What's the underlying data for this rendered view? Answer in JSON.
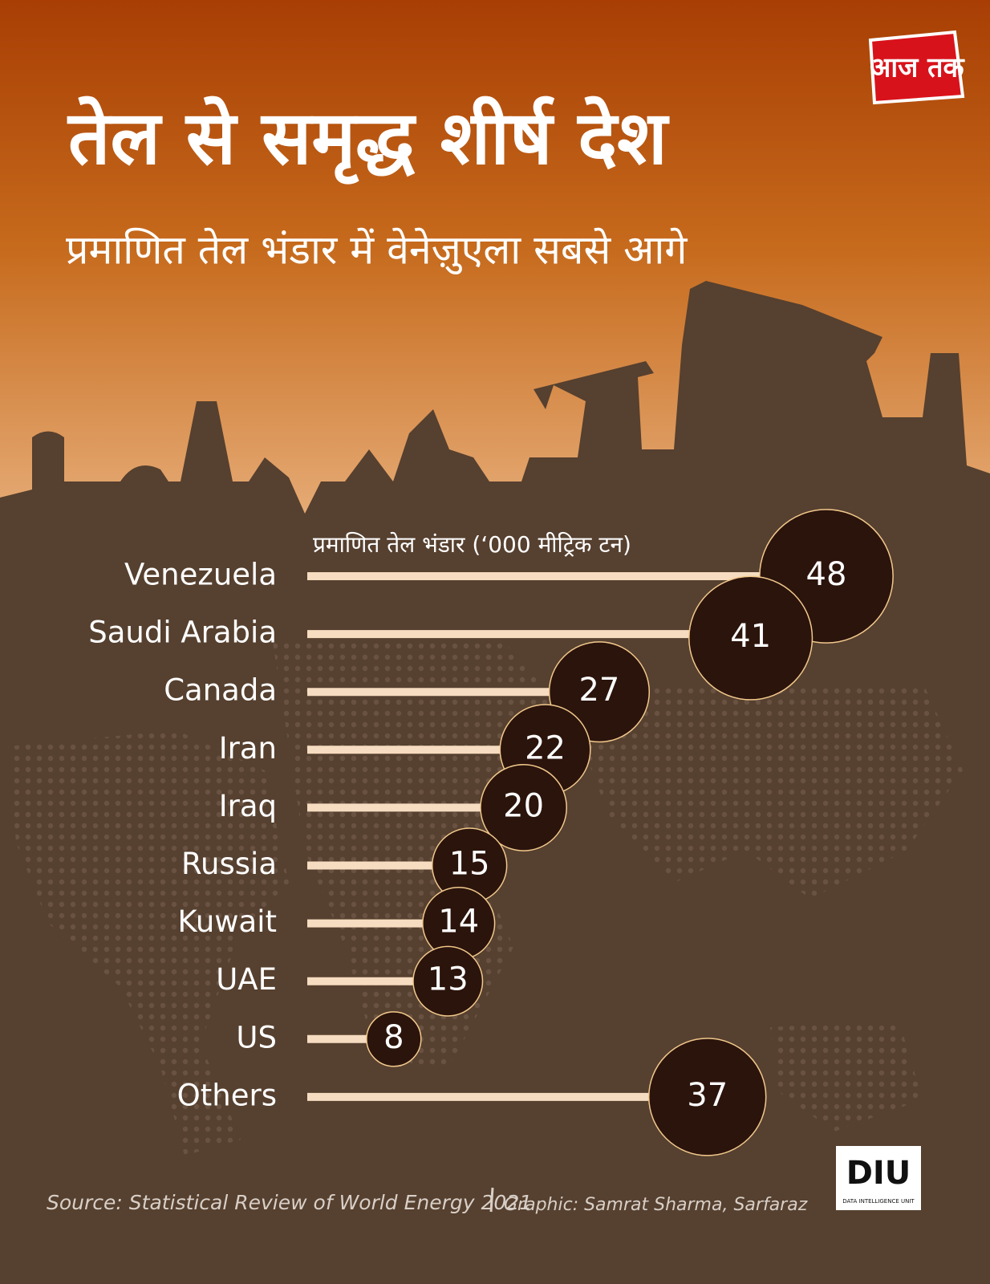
{
  "chart_data": {
    "type": "lollipop",
    "title": "तेल से समृद्ध शीर्ष देश",
    "subtitle": "प्रमाणित तेल भंडार में वेनेज़ुएला सबसे आगे",
    "value_axis_label": "प्रमाणित तेल भंडार (‘000 मीट्रिक टन)",
    "categories": [
      "Venezuela",
      "Saudi Arabia",
      "Canada",
      "Iran",
      "Iraq",
      "Russia",
      "Kuwait",
      "UAE",
      "US",
      "Others"
    ],
    "values": [
      48,
      41,
      27,
      22,
      20,
      15,
      14,
      13,
      8,
      37
    ],
    "line_color": "#f6dcc0",
    "bubble_color": "#2b140c",
    "source": "Source: Statistical Review of World Energy 2021",
    "credit": "Graphic: Samrat Sharma, Sarfaraz",
    "logo": "आज तक",
    "badge": "DIU",
    "badge_subtitle": "DATA INTELLIGENCE UNIT"
  }
}
